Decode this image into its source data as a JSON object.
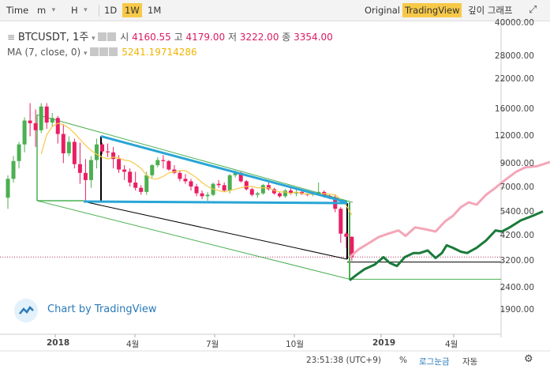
{
  "toolbar": {
    "time_label": "Time",
    "minute_select": "m",
    "hour_select": "H",
    "btn_1d": "1D",
    "btn_1w": "1W",
    "btn_1m": "1M",
    "original": "Original",
    "tradingview": "TradingView",
    "depth_chart": "깊이 그래프"
  },
  "legend": {
    "symbol": "BTCUSDT, 1주",
    "open_label": "시",
    "open_value": "4160.55",
    "high_label": "고",
    "high_value": "4179.00",
    "low_label": "저",
    "low_value": "3222.00",
    "close_label": "종",
    "close_value": "3354.00",
    "ma_label": "MA (7, close, 0)",
    "ma_value": "5241.19714286"
  },
  "watermark": "Chart by TradingView",
  "bottom": {
    "clock": "23:51:38 (UTC+9)",
    "percent": "%",
    "log": "로그눈금",
    "auto": "자동"
  },
  "colors": {
    "up": "#4caf50",
    "down": "#e91e63",
    "ma": "#f7c948",
    "channel": "#4caf50",
    "trendline": "#29a5d6",
    "projection_green": "#1a7a3a",
    "projection_pink": "#f4a6b8",
    "accent": "#2a7ab8",
    "highlight": "#f7c948"
  },
  "chart_data": {
    "type": "candlestick",
    "scale": "log",
    "y_ticks": [
      40000,
      28000,
      22000,
      16000,
      12000,
      9000,
      7000,
      5400,
      4200,
      3200,
      2400,
      1900
    ],
    "x_ticks": [
      "2018",
      "4월",
      "7월",
      "10월",
      "2019",
      "4월"
    ],
    "weeks_start": "2017-11-06",
    "candles": [
      [
        6300,
        8000,
        5600,
        7700
      ],
      [
        7700,
        9800,
        7400,
        9300
      ],
      [
        9300,
        11400,
        8600,
        11100
      ],
      [
        11100,
        14800,
        10200,
        14300
      ],
      [
        14300,
        17200,
        12100,
        13900
      ],
      [
        13900,
        16100,
        10800,
        12900
      ],
      [
        12900,
        17200,
        12500,
        16600
      ],
      [
        16600,
        17200,
        13100,
        14000
      ],
      [
        14000,
        15500,
        13400,
        14700
      ],
      [
        14700,
        15000,
        11200,
        12400
      ],
      [
        12400,
        13800,
        9100,
        10100
      ],
      [
        10100,
        12100,
        9800,
        11400
      ],
      [
        11400,
        11800,
        8600,
        9000
      ],
      [
        9000,
        11300,
        7300,
        8200
      ],
      [
        8200,
        9500,
        6000,
        7600
      ],
      [
        7600,
        9800,
        7000,
        9400
      ],
      [
        9400,
        11800,
        8600,
        11100
      ],
      [
        11100,
        11300,
        10000,
        10300
      ],
      [
        10300,
        11200,
        9700,
        10200
      ],
      [
        10200,
        10800,
        8600,
        9500
      ],
      [
        9500,
        9900,
        8200,
        8500
      ],
      [
        8500,
        8900,
        7600,
        8300
      ],
      [
        8300,
        8600,
        7100,
        7400
      ],
      [
        7400,
        8300,
        6800,
        7000
      ],
      [
        7000,
        7200,
        6500,
        6700
      ],
      [
        6700,
        8300,
        6500,
        8000
      ],
      [
        8000,
        9000,
        7800,
        8900
      ],
      [
        8900,
        9700,
        8700,
        9400
      ],
      [
        9400,
        9900,
        8600,
        9300
      ],
      [
        9300,
        9400,
        8400,
        8500
      ],
      [
        8500,
        8900,
        8100,
        8200
      ],
      [
        8200,
        8400,
        7500,
        7700
      ],
      [
        7700,
        8100,
        7300,
        7500
      ],
      [
        7500,
        7700,
        6800,
        7100
      ],
      [
        7100,
        7300,
        6400,
        6600
      ],
      [
        6600,
        6800,
        6200,
        6400
      ],
      [
        6400,
        6700,
        6100,
        6500
      ],
      [
        6500,
        7400,
        6400,
        7300
      ],
      [
        7300,
        7600,
        7000,
        7200
      ],
      [
        7200,
        7400,
        6700,
        6800
      ],
      [
        6800,
        8100,
        6600,
        8000
      ],
      [
        8000,
        8400,
        7800,
        8200
      ],
      [
        8200,
        8300,
        7400,
        7500
      ],
      [
        7500,
        7600,
        6800,
        6900
      ],
      [
        6900,
        7000,
        6400,
        6500
      ],
      [
        6500,
        6700,
        6300,
        6600
      ],
      [
        6600,
        7300,
        6500,
        7200
      ],
      [
        7200,
        7400,
        6800,
        6900
      ],
      [
        6900,
        7000,
        6500,
        6600
      ],
      [
        6600,
        6700,
        6300,
        6400
      ],
      [
        6400,
        6900,
        6300,
        6800
      ],
      [
        6800,
        7100,
        6500,
        6600
      ],
      [
        6600,
        6900,
        6400,
        6700
      ],
      [
        6700,
        6800,
        6500,
        6550
      ],
      [
        6550,
        6600,
        6400,
        6500
      ],
      [
        6500,
        6700,
        6400,
        6600
      ],
      [
        6600,
        7400,
        6500,
        6700
      ],
      [
        6700,
        6800,
        6300,
        6400
      ],
      [
        6400,
        6500,
        6200,
        6300
      ],
      [
        6300,
        6500,
        5400,
        5600
      ],
      [
        5600,
        5700,
        3900,
        4300
      ],
      [
        4300,
        4400,
        3700,
        4160
      ],
      [
        4160,
        4179,
        3222,
        3354
      ]
    ],
    "ma": [
      null,
      null,
      null,
      null,
      null,
      null,
      10000,
      12300,
      13400,
      13900,
      13700,
      13200,
      12500,
      11700,
      11000,
      10400,
      10000,
      9700,
      9500,
      9700,
      9600,
      9400,
      9300,
      9000,
      8600,
      8000,
      7700,
      7700,
      7900,
      8200,
      8300,
      8400,
      8400,
      8100,
      7800,
      7400,
      7100,
      6900,
      6800,
      6700,
      6800,
      6900,
      7000,
      7100,
      7100,
      7000,
      7000,
      7000,
      6800,
      6700,
      6700,
      6600,
      6700,
      6600,
      6550,
      6550,
      6550,
      6580,
      6550,
      6500,
      6200,
      5800,
      5241
    ]
  }
}
